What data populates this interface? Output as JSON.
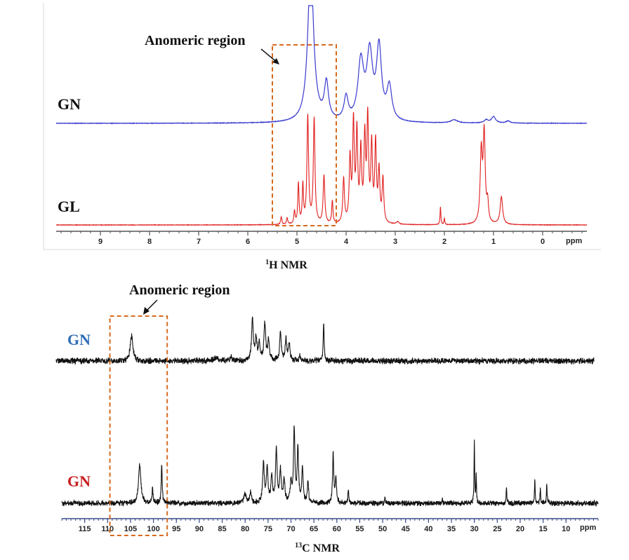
{
  "panels": {
    "h1": {
      "title_sup": "1",
      "title_main": "H NMR",
      "region_label": "Anomeric region"
    },
    "c13": {
      "title_sup": "13",
      "title_main": "C NMR",
      "region_label": "Anomeric region"
    }
  },
  "colors": {
    "gn_blue": "#3a3ad0",
    "gl_red": "#e02020",
    "c13_gn_blue": "#2f6db5",
    "c13_gn_red": "#c81e1e",
    "box_orange": "#d86a1e",
    "black": "#111111"
  },
  "chart_data": [
    {
      "type": "line",
      "title": "1H NMR",
      "xlabel": "ppm",
      "xlim": [
        9.9,
        -0.9
      ],
      "xticks": [
        9,
        8,
        7,
        6,
        5,
        4,
        3,
        2,
        1,
        0
      ],
      "highlight_region": {
        "label": "Anomeric region",
        "x_range": [
          5.5,
          4.2
        ]
      },
      "series": [
        {
          "name": "GN",
          "color": "#3a3ad0",
          "peaks": [
            {
              "x": 4.72,
              "h": 1.5,
              "w": 0.07
            },
            {
              "x": 4.4,
              "h": 0.35,
              "w": 0.05
            },
            {
              "x": 4.0,
              "h": 0.22,
              "w": 0.05
            },
            {
              "x": 3.7,
              "h": 0.55,
              "w": 0.07
            },
            {
              "x": 3.52,
              "h": 0.62,
              "w": 0.07
            },
            {
              "x": 3.33,
              "h": 0.68,
              "w": 0.06
            },
            {
              "x": 3.12,
              "h": 0.32,
              "w": 0.06
            },
            {
              "x": 1.8,
              "h": 0.03,
              "w": 0.08
            },
            {
              "x": 1.0,
              "h": 0.06,
              "w": 0.05
            },
            {
              "x": 1.15,
              "h": 0.03,
              "w": 0.05
            },
            {
              "x": 0.7,
              "h": 0.02,
              "w": 0.05
            }
          ]
        },
        {
          "name": "GL",
          "color": "#e02020",
          "peaks": [
            {
              "x": 5.32,
              "h": 0.06,
              "w": 0.015
            },
            {
              "x": 5.2,
              "h": 0.05,
              "w": 0.015
            },
            {
              "x": 5.05,
              "h": 0.1,
              "w": 0.015
            },
            {
              "x": 4.97,
              "h": 0.32,
              "w": 0.015
            },
            {
              "x": 4.88,
              "h": 0.3,
              "w": 0.015
            },
            {
              "x": 4.78,
              "h": 0.85,
              "w": 0.02
            },
            {
              "x": 4.65,
              "h": 0.83,
              "w": 0.02
            },
            {
              "x": 4.45,
              "h": 0.38,
              "w": 0.02
            },
            {
              "x": 4.28,
              "h": 0.18,
              "w": 0.015
            },
            {
              "x": 4.05,
              "h": 0.35,
              "w": 0.02
            },
            {
              "x": 3.92,
              "h": 0.5,
              "w": 0.02
            },
            {
              "x": 3.85,
              "h": 0.78,
              "w": 0.02
            },
            {
              "x": 3.78,
              "h": 0.7,
              "w": 0.02
            },
            {
              "x": 3.7,
              "h": 0.55,
              "w": 0.02
            },
            {
              "x": 3.62,
              "h": 0.65,
              "w": 0.02
            },
            {
              "x": 3.56,
              "h": 0.8,
              "w": 0.02
            },
            {
              "x": 3.48,
              "h": 0.6,
              "w": 0.02
            },
            {
              "x": 3.4,
              "h": 0.62,
              "w": 0.02
            },
            {
              "x": 3.33,
              "h": 0.4,
              "w": 0.02
            },
            {
              "x": 3.25,
              "h": 0.35,
              "w": 0.02
            },
            {
              "x": 2.95,
              "h": 0.02,
              "w": 0.03
            },
            {
              "x": 2.08,
              "h": 0.14,
              "w": 0.01
            },
            {
              "x": 2.0,
              "h": 0.05,
              "w": 0.01
            },
            {
              "x": 1.25,
              "h": 0.55,
              "w": 0.025
            },
            {
              "x": 1.19,
              "h": 0.7,
              "w": 0.025
            },
            {
              "x": 1.12,
              "h": 0.15,
              "w": 0.02
            },
            {
              "x": 0.84,
              "h": 0.22,
              "w": 0.03
            }
          ]
        }
      ]
    },
    {
      "type": "line",
      "title": "13C NMR",
      "xlabel": "ppm",
      "xlim": [
        120.0,
        3.0
      ],
      "xticks": [
        115,
        110,
        105,
        100,
        95,
        90,
        85,
        80,
        75,
        70,
        65,
        60,
        55,
        50,
        45,
        40,
        35,
        30,
        25,
        20,
        15,
        10
      ],
      "highlight_region": {
        "label": "Anomeric region",
        "x_range": [
          109.5,
          97.0
        ]
      },
      "series": [
        {
          "name": "GN",
          "color": "#2f6db5",
          "peaks": [
            {
              "x": 103.6,
              "h": 0.85,
              "w": 0.35
            },
            {
              "x": 85,
              "h": 0.12,
              "w": 0.5
            },
            {
              "x": 82,
              "h": 0.18,
              "w": 0.2
            },
            {
              "x": 77.3,
              "h": 1.4,
              "w": 0.22
            },
            {
              "x": 76.5,
              "h": 0.8,
              "w": 0.2
            },
            {
              "x": 75.8,
              "h": 0.6,
              "w": 0.2
            },
            {
              "x": 74.6,
              "h": 1.25,
              "w": 0.22
            },
            {
              "x": 73.8,
              "h": 0.7,
              "w": 0.2
            },
            {
              "x": 71.2,
              "h": 1.0,
              "w": 0.2
            },
            {
              "x": 70.0,
              "h": 0.75,
              "w": 0.2
            },
            {
              "x": 69.3,
              "h": 0.55,
              "w": 0.2
            },
            {
              "x": 67,
              "h": 0.15,
              "w": 0.2
            },
            {
              "x": 61.8,
              "h": 1.3,
              "w": 0.12
            }
          ]
        },
        {
          "name": "GN",
          "color": "#c81e1e",
          "peaks": [
            {
              "x": 103.0,
              "h": 0.85,
              "w": 0.3
            },
            {
              "x": 100.2,
              "h": 0.3,
              "w": 0.15
            },
            {
              "x": 98.2,
              "h": 0.85,
              "w": 0.12
            },
            {
              "x": 80,
              "h": 0.2,
              "w": 0.3
            },
            {
              "x": 78.8,
              "h": 0.25,
              "w": 0.2
            },
            {
              "x": 76.0,
              "h": 0.9,
              "w": 0.2
            },
            {
              "x": 75.2,
              "h": 0.75,
              "w": 0.2
            },
            {
              "x": 74.2,
              "h": 0.6,
              "w": 0.2
            },
            {
              "x": 73.2,
              "h": 1.15,
              "w": 0.2
            },
            {
              "x": 72.3,
              "h": 0.7,
              "w": 0.2
            },
            {
              "x": 71.5,
              "h": 0.5,
              "w": 0.2
            },
            {
              "x": 70.0,
              "h": 0.45,
              "w": 0.2
            },
            {
              "x": 69.3,
              "h": 1.6,
              "w": 0.18
            },
            {
              "x": 68.5,
              "h": 1.2,
              "w": 0.18
            },
            {
              "x": 67.5,
              "h": 0.75,
              "w": 0.18
            },
            {
              "x": 66.3,
              "h": 0.5,
              "w": 0.15
            },
            {
              "x": 60.8,
              "h": 1.1,
              "w": 0.15
            },
            {
              "x": 60.2,
              "h": 0.55,
              "w": 0.15
            },
            {
              "x": 57.5,
              "h": 0.3,
              "w": 0.1
            },
            {
              "x": 49.5,
              "h": 0.12,
              "w": 0.1
            },
            {
              "x": 37,
              "h": 0.1,
              "w": 0.1
            },
            {
              "x": 30.0,
              "h": 1.35,
              "w": 0.08
            },
            {
              "x": 29.6,
              "h": 0.6,
              "w": 0.08
            },
            {
              "x": 23.0,
              "h": 0.38,
              "w": 0.08
            },
            {
              "x": 16.8,
              "h": 0.55,
              "w": 0.08
            },
            {
              "x": 15.6,
              "h": 0.35,
              "w": 0.08
            },
            {
              "x": 14.2,
              "h": 0.45,
              "w": 0.08
            }
          ]
        }
      ]
    }
  ]
}
